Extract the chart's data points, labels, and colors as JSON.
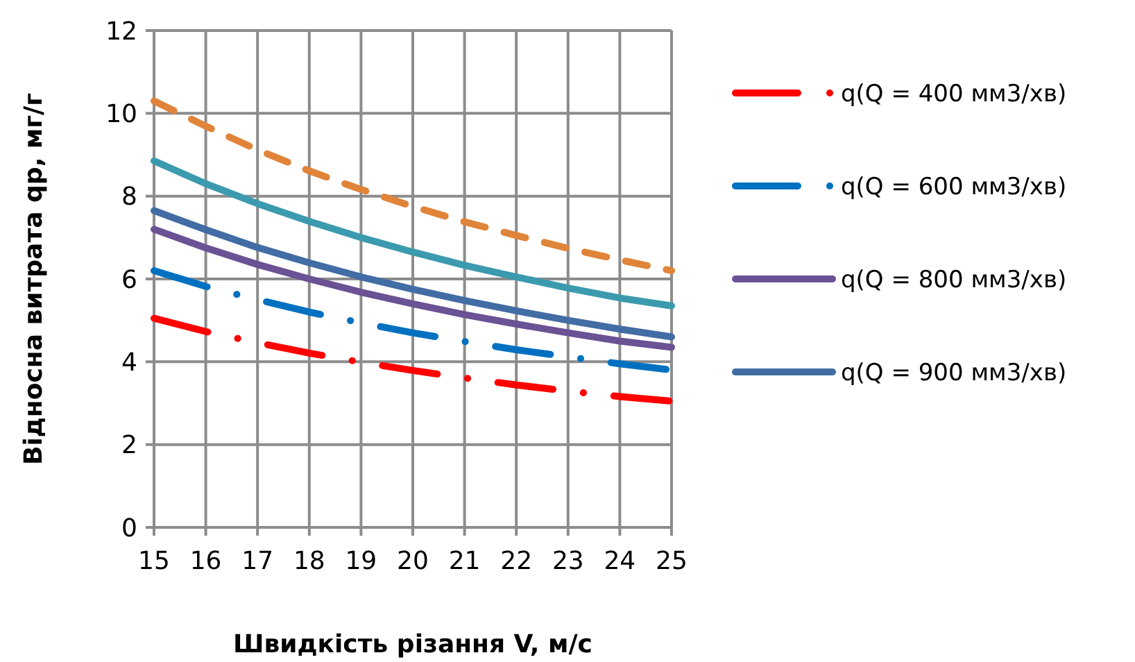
{
  "chart_data": {
    "type": "line",
    "xlabel": "Швидкість різання V, м/с",
    "ylabel": "Відносна витрата qp, мг/г",
    "x": [
      15,
      16,
      17,
      18,
      19,
      20,
      21,
      22,
      23,
      24,
      25
    ],
    "xlim": [
      15,
      25
    ],
    "xticks": [
      15,
      16,
      17,
      18,
      19,
      20,
      21,
      22,
      23,
      24,
      25
    ],
    "ylim": [
      0,
      12
    ],
    "yticks": [
      0,
      2,
      4,
      6,
      8,
      10,
      12
    ],
    "grid": true,
    "legend": "right",
    "series": [
      {
        "name": "q(Q = 400 мм3/хв)",
        "color": "#ff0000",
        "line_style": "dashdot",
        "values": [
          5.05,
          4.73,
          4.46,
          4.21,
          3.99,
          3.79,
          3.61,
          3.44,
          3.29,
          3.16,
          3.05
        ]
      },
      {
        "name": "q(Q = 600 мм3/хв)",
        "color": "#0070c0",
        "line_style": "dashdot",
        "values": [
          6.2,
          5.82,
          5.5,
          5.2,
          4.94,
          4.7,
          4.49,
          4.29,
          4.12,
          3.95,
          3.8
        ]
      },
      {
        "name": "q(Q = 800 мм3/хв)",
        "color": "#6a5294",
        "line_style": "solid",
        "values": [
          7.2,
          6.75,
          6.35,
          6.0,
          5.68,
          5.4,
          5.14,
          4.91,
          4.7,
          4.5,
          4.35
        ]
      },
      {
        "name": "q(Q = 900 мм3/хв)",
        "color": "#426ca4",
        "line_style": "solid",
        "values": [
          7.65,
          7.19,
          6.76,
          6.39,
          6.05,
          5.75,
          5.48,
          5.23,
          5.0,
          4.79,
          4.6
        ]
      },
      {
        "color": "#3c9aae",
        "line_style": "solid",
        "values": [
          8.85,
          8.3,
          7.82,
          7.39,
          7.0,
          6.65,
          6.33,
          6.05,
          5.78,
          5.54,
          5.35
        ]
      },
      {
        "color": "#e0843a",
        "line_style": "dashed",
        "values": [
          10.3,
          9.69,
          9.12,
          8.61,
          8.16,
          7.75,
          7.38,
          7.05,
          6.74,
          6.46,
          6.2
        ]
      }
    ]
  }
}
